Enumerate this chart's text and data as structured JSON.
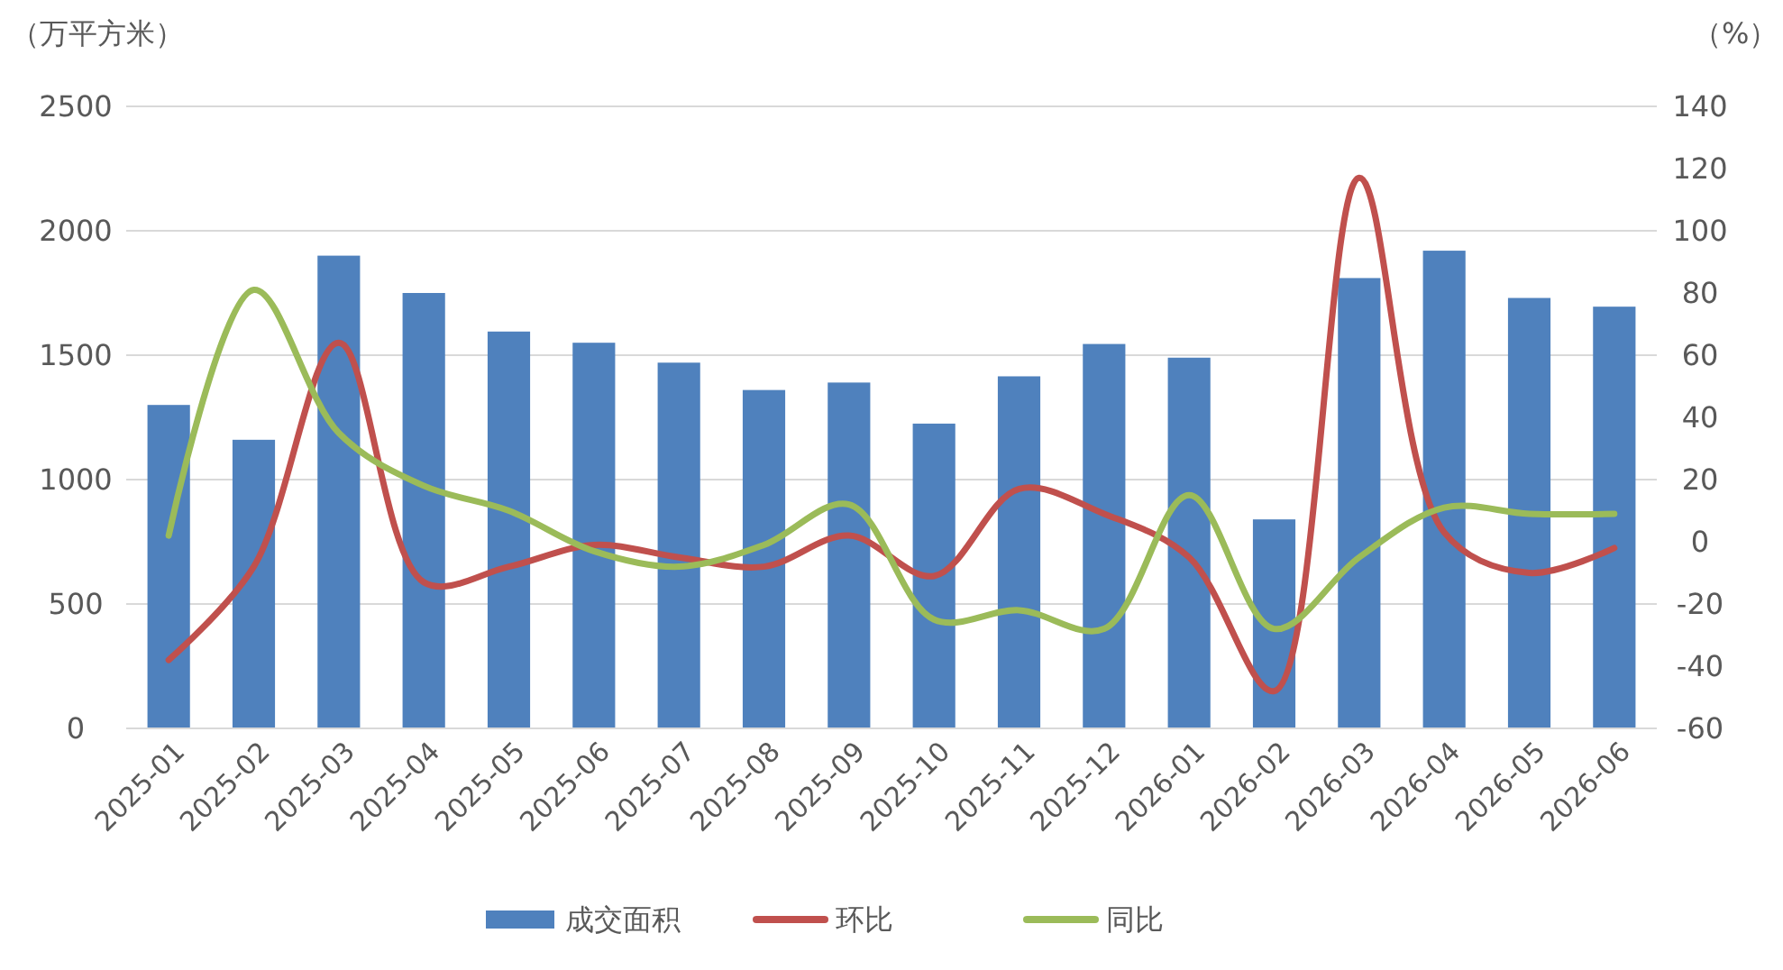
{
  "chart_data": {
    "type": "bar",
    "ylabel": "（万平方米）",
    "y2label": "（%）",
    "categories": [
      "2025-01",
      "2025-02",
      "2025-03",
      "2025-04",
      "2025-05",
      "2025-06",
      "2025-07",
      "2025-08",
      "2025-09",
      "2025-10",
      "2025-11",
      "2025-12",
      "2026-01",
      "2026-02",
      "2026-03",
      "2026-04",
      "2026-05",
      "2026-06"
    ],
    "series": [
      {
        "name": "成交面积",
        "color": "#4f81bd",
        "values": [
          1300,
          1160,
          1900,
          1750,
          1595,
          1550,
          1470,
          1360,
          1390,
          1225,
          1415,
          1545,
          1490,
          840,
          1810,
          1920,
          1730,
          1695
        ]
      },
      {
        "name": "环比",
        "type": "line",
        "axis": "y2",
        "color": "#c0504d",
        "values": [
          -38,
          -8,
          64,
          -13,
          -8,
          -1,
          -5,
          -8,
          2,
          -11,
          17,
          9,
          -5,
          -48,
          117,
          3,
          -10,
          -2
        ]
      },
      {
        "name": "同比",
        "type": "line",
        "axis": "y2",
        "color": "#9bbb59",
        "values": [
          2,
          81,
          35,
          18,
          10,
          -3,
          -8,
          -1,
          12,
          -25,
          -22,
          -28,
          15,
          -28,
          -5,
          11,
          9,
          9
        ]
      }
    ],
    "ylim": [
      0,
      2500
    ],
    "yticks": [
      0,
      500,
      1000,
      1500,
      2000,
      2500
    ],
    "y2lim": [
      -60,
      140
    ],
    "y2ticks": [
      -60,
      -40,
      -20,
      0,
      20,
      40,
      60,
      80,
      100,
      120,
      140
    ],
    "grid": "y",
    "legend": "bottom",
    "marker": "none",
    "line_style": "solid"
  }
}
